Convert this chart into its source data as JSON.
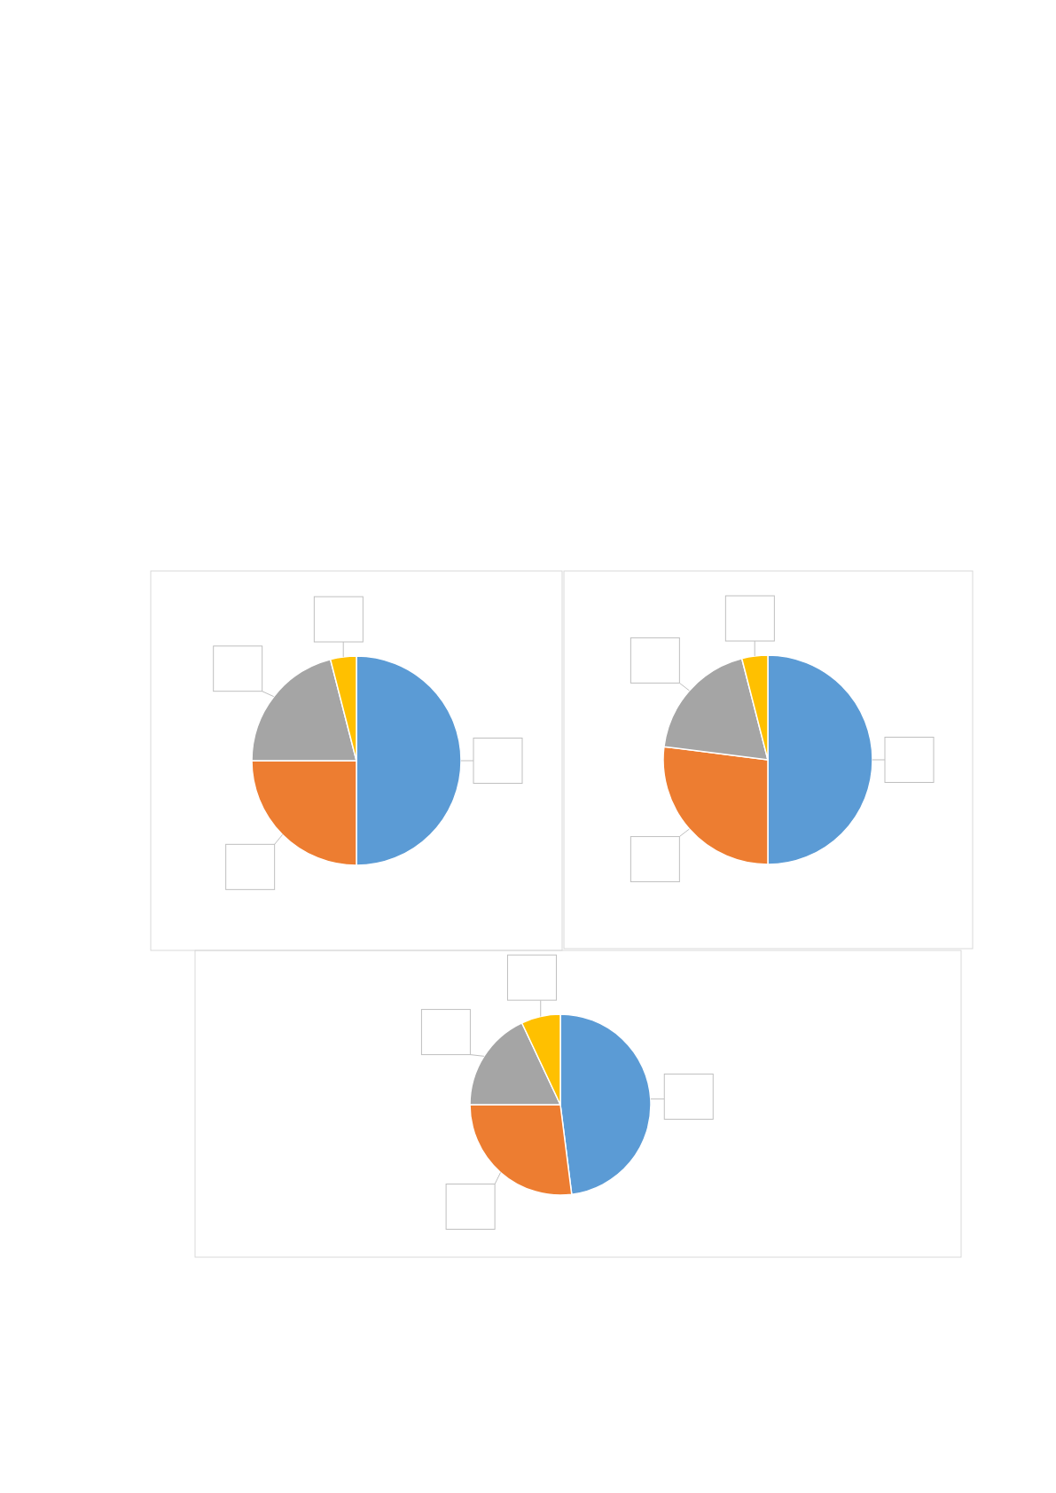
{
  "chart_data": [
    {
      "type": "pie",
      "categories": [
        null,
        null,
        null,
        null
      ],
      "values": [
        50,
        25,
        21,
        4
      ],
      "colors": [
        "#5b9bd5",
        "#ed7d31",
        "#a5a5a5",
        "#ffc000"
      ]
    },
    {
      "type": "pie",
      "categories": [
        null,
        null,
        null,
        null
      ],
      "values": [
        50,
        27,
        19,
        4
      ],
      "colors": [
        "#5b9bd5",
        "#ed7d31",
        "#a5a5a5",
        "#ffc000"
      ]
    },
    {
      "type": "pie",
      "categories": [
        null,
        null,
        null,
        null
      ],
      "values": [
        48,
        27,
        18,
        7
      ],
      "colors": [
        "#5b9bd5",
        "#ed7d31",
        "#a5a5a5",
        "#ffc000"
      ]
    }
  ]
}
